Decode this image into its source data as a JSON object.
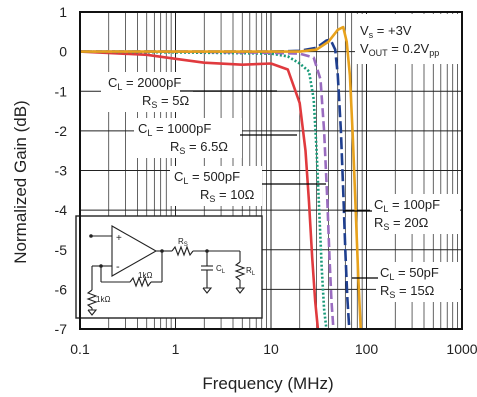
{
  "chart_data": {
    "type": "line",
    "xlabel": "Frequency (MHz)",
    "ylabel": "Normalized Gain (dB)",
    "x_scale": "log",
    "xlim": [
      0.1,
      1000
    ],
    "ylim": [
      -7,
      1
    ],
    "x_ticks": [
      0.1,
      1,
      10,
      100,
      1000
    ],
    "x_tick_labels": [
      "0.1",
      "1",
      "10",
      "100",
      "1000"
    ],
    "y_ticks": [
      1,
      0,
      -1,
      -2,
      -3,
      -4,
      -5,
      -6,
      -7
    ],
    "y_tick_labels": [
      "1",
      "0",
      "-1",
      "-2",
      "-3",
      "-4",
      "-5",
      "-6",
      "-7"
    ],
    "grid": true,
    "conditions": {
      "vs_label": "V",
      "vs_sub": "s",
      "vs_value": " = +3V",
      "vout_label": "V",
      "vout_sub": "OUT",
      "vout_value": " = 0.2V",
      "vout_unit_sub": "pp"
    },
    "series": [
      {
        "cl_label": "C",
        "cl_sub": "L",
        "cl_value": " = 2000pF",
        "rs_label": "R",
        "rs_sub": "S",
        "rs_value": " = 5Ω",
        "color": "#e03a3e",
        "dash": "",
        "x": [
          0.1,
          0.5,
          1,
          2,
          5,
          10,
          15,
          20,
          23,
          25,
          27,
          29,
          31
        ],
        "y": [
          0,
          -0.08,
          -0.18,
          -0.28,
          -0.33,
          -0.3,
          -0.45,
          -1.3,
          -2.5,
          -3.8,
          -5.2,
          -6.3,
          -7
        ]
      },
      {
        "cl_label": "C",
        "cl_sub": "L",
        "cl_value": " = 1000pF",
        "rs_label": "R",
        "rs_sub": "S",
        "rs_value": " = 6.5Ω",
        "color": "#1a9b7a",
        "dash": "2,2",
        "x": [
          0.1,
          1,
          5,
          10,
          15,
          20,
          25,
          28,
          30,
          32,
          34,
          36,
          38
        ],
        "y": [
          0,
          -0.02,
          -0.04,
          -0.05,
          -0.12,
          -0.3,
          -0.5,
          -1.2,
          -2.5,
          -4.0,
          -5.5,
          -6.5,
          -7
        ]
      },
      {
        "cl_label": "C",
        "cl_sub": "L",
        "cl_value": " = 500pF",
        "rs_label": "R",
        "rs_sub": "S",
        "rs_value": " = 10Ω",
        "color": "#9a6cc0",
        "dash": "9,4",
        "x": [
          0.1,
          1,
          5,
          10,
          20,
          28,
          33,
          36,
          39,
          41,
          43,
          45
        ],
        "y": [
          0,
          0,
          -0.02,
          -0.03,
          -0.05,
          -0.15,
          -0.7,
          -2.0,
          -3.8,
          -5.2,
          -6.3,
          -7
        ]
      },
      {
        "cl_label": "C",
        "cl_sub": "L",
        "cl_value": " = 100pF",
        "rs_label": "R",
        "rs_sub": "S",
        "rs_value": " = 20Ω",
        "color": "#1f3f8f",
        "dash": "12,4",
        "x": [
          0.1,
          1,
          5,
          10,
          20,
          30,
          38,
          42,
          47,
          50,
          54,
          57,
          60,
          63,
          66
        ],
        "y": [
          0,
          0,
          0,
          0,
          0.02,
          0.1,
          0.28,
          0.3,
          0.05,
          -0.6,
          -2.0,
          -3.5,
          -5.0,
          -6.2,
          -7
        ]
      },
      {
        "cl_label": "C",
        "cl_sub": "L",
        "cl_value": " = 50pF",
        "rs_label": "R",
        "rs_sub": "S",
        "rs_value": " = 15Ω",
        "color": "#e8a21c",
        "dash": "",
        "x": [
          0.1,
          1,
          5,
          10,
          20,
          30,
          40,
          50,
          57,
          62,
          67,
          72,
          77,
          82,
          87
        ],
        "y": [
          0,
          0,
          0,
          0,
          0,
          0.05,
          0.25,
          0.55,
          0.62,
          0.25,
          -0.6,
          -2.2,
          -4.0,
          -5.7,
          -7
        ]
      }
    ],
    "inset": {
      "rs_label": "R",
      "rs_sub": "S",
      "cl_label": "C",
      "cl_sub": "L",
      "rl_label": "R",
      "rl_sub": "L",
      "rf_label": "1kΩ",
      "rg_label": "1kΩ",
      "plus": "+",
      "minus": "-"
    }
  }
}
